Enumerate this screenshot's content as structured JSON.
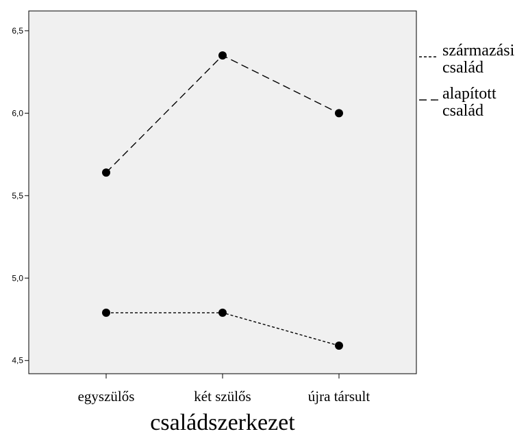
{
  "chart_data": {
    "type": "line",
    "xlabel": "családszerkezet",
    "ylabel": "",
    "categories": [
      "egyszülős",
      "két szülős",
      "újra társult"
    ],
    "ylim": [
      4.42,
      6.62
    ],
    "yticks": [
      "4,5",
      "5,0",
      "5,5",
      "6,0",
      "6,5"
    ],
    "ytick_values": [
      4.5,
      5.0,
      5.5,
      6.0,
      6.5
    ],
    "grid": false,
    "legend_position": "right",
    "series": [
      {
        "name": "származási család",
        "name_lines": [
          "származási",
          "család"
        ],
        "values": [
          4.79,
          4.79,
          4.59
        ],
        "dash": "short"
      },
      {
        "name": "alapított család",
        "name_lines": [
          "alapított",
          "család"
        ],
        "values": [
          5.64,
          6.35,
          6.0
        ],
        "dash": "long"
      }
    ],
    "colors": {
      "plot_background": "#f0f0f0",
      "marker": "#000000",
      "line": "#000000"
    }
  }
}
